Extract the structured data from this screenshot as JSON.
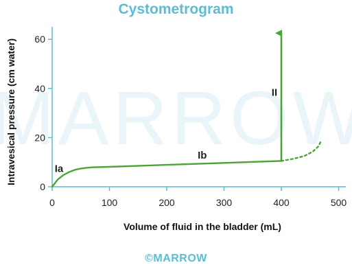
{
  "title": "Cystometrogram",
  "footer": "©MARROW",
  "watermark": "MARROW",
  "colors": {
    "curve": "#4aa534",
    "title": "#5bbcd2",
    "axis": "#5bbcd2",
    "watermark": "#eaf5f9"
  },
  "chart_data": {
    "type": "line",
    "title": "Cystometrogram",
    "xlabel": "Volume of fluid in the bladder (mL)",
    "ylabel": "Intravesical pressure (cm water)",
    "xlim": [
      0,
      520
    ],
    "ylim": [
      0,
      65
    ],
    "xticks": [
      0,
      100,
      200,
      300,
      400,
      500
    ],
    "yticks": [
      0,
      20,
      40,
      60
    ],
    "grid": false,
    "series": [
      {
        "style": "solid",
        "x": [
          0,
          10,
          20,
          30,
          40,
          50,
          60,
          70,
          100,
          150,
          200,
          250,
          300,
          350,
          400
        ],
        "y": [
          0,
          3.0,
          4.8,
          6.0,
          6.9,
          7.4,
          7.7,
          7.9,
          8.1,
          8.5,
          8.9,
          9.3,
          9.7,
          10.1,
          10.5
        ]
      },
      {
        "style": "dotted",
        "x": [
          400,
          420,
          440,
          455,
          465,
          470
        ],
        "y": [
          10.5,
          11.3,
          12.5,
          14.3,
          16.5,
          19.0
        ]
      },
      {
        "style": "arrow",
        "x": [
          400,
          400
        ],
        "y": [
          10.5,
          62.5
        ]
      }
    ],
    "annotations": [
      {
        "text": "Ia",
        "x": 12,
        "y": 6
      },
      {
        "text": "Ib",
        "x": 262,
        "y": 11.5
      },
      {
        "text": "II",
        "x": 388,
        "y": 37
      }
    ]
  }
}
